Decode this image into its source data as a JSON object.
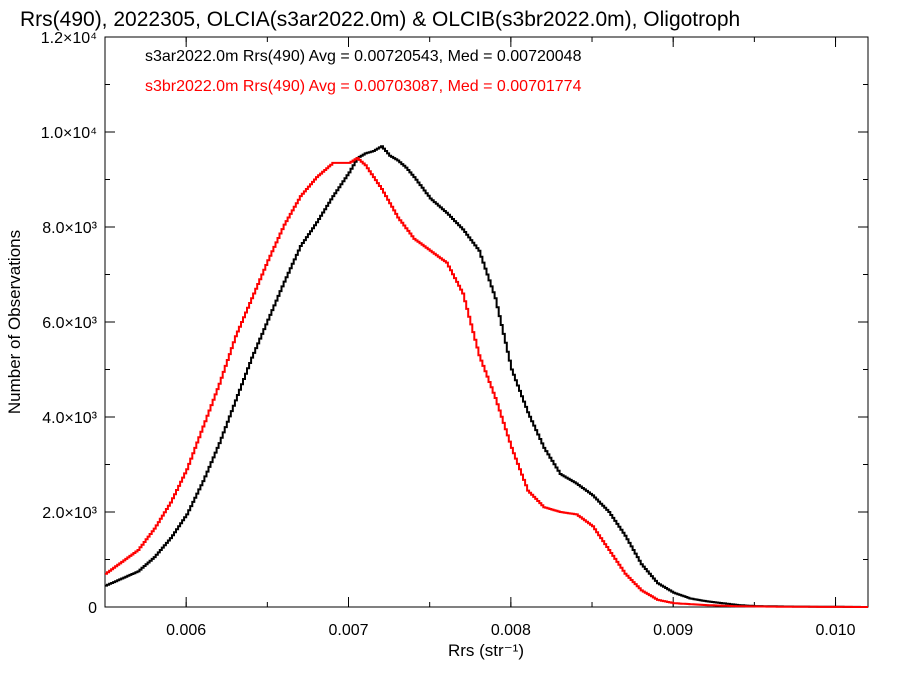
{
  "chart_data": {
    "type": "line",
    "title": "Rrs(490), 2022305, OLCIA(s3ar2022.0m) & OLCIB(s3br2022.0m), Oligotroph",
    "xlabel": "Rrs (str⁻¹)",
    "ylabel": "Number of Observations",
    "xlim": [
      0.0055,
      0.0102
    ],
    "ylim": [
      0,
      12000
    ],
    "xticks": [
      0.006,
      0.007,
      0.008,
      0.009,
      0.01
    ],
    "xtick_labels": [
      "0.006",
      "0.007",
      "0.008",
      "0.009",
      "0.010"
    ],
    "yticks": [
      {
        "value": 0,
        "label": "0"
      },
      {
        "value": 2000,
        "label": "2.0×10³"
      },
      {
        "value": 4000,
        "label": "4.0×10³"
      },
      {
        "value": 6000,
        "label": "6.0×10³"
      },
      {
        "value": 8000,
        "label": "8.0×10³"
      },
      {
        "value": 10000,
        "label": "1.0×10⁴"
      },
      {
        "value": 12000,
        "label": "1.2×10⁴"
      }
    ],
    "grid": false,
    "legend_position": "top-left",
    "series": [
      {
        "name": "s3ar2022.0m Rrs(490) Avg = 0.00720543, Med = 0.00720048",
        "color": "#000000",
        "x": [
          0.0055,
          0.0057,
          0.0058,
          0.0059,
          0.006,
          0.0061,
          0.0062,
          0.0063,
          0.0064,
          0.0065,
          0.0066,
          0.0067,
          0.0068,
          0.0069,
          0.007,
          0.00705,
          0.0071,
          0.00715,
          0.0072,
          0.00725,
          0.0073,
          0.00735,
          0.0074,
          0.0075,
          0.0076,
          0.0077,
          0.0078,
          0.0079,
          0.008,
          0.0081,
          0.0082,
          0.0083,
          0.0084,
          0.0085,
          0.0086,
          0.0087,
          0.0088,
          0.0089,
          0.009,
          0.0091,
          0.0092,
          0.0093,
          0.0094,
          0.0095,
          0.0097,
          0.0102
        ],
        "y": [
          450,
          750,
          1050,
          1450,
          1950,
          2650,
          3450,
          4350,
          5250,
          6050,
          6850,
          7600,
          8100,
          8650,
          9150,
          9450,
          9550,
          9600,
          9700,
          9500,
          9400,
          9250,
          9050,
          8600,
          8300,
          7950,
          7500,
          6500,
          5000,
          4100,
          3350,
          2800,
          2600,
          2350,
          2000,
          1500,
          900,
          500,
          300,
          180,
          120,
          80,
          40,
          20,
          10,
          0
        ]
      },
      {
        "name": "s3br2022.0m Rrs(490) Avg = 0.00703087, Med = 0.00701774",
        "color": "#ff0000",
        "x": [
          0.0055,
          0.0057,
          0.0058,
          0.0059,
          0.006,
          0.0061,
          0.0062,
          0.0063,
          0.0064,
          0.0065,
          0.0066,
          0.0067,
          0.0068,
          0.0069,
          0.007,
          0.00705,
          0.0071,
          0.0072,
          0.0073,
          0.0074,
          0.0075,
          0.0076,
          0.0077,
          0.0078,
          0.0079,
          0.008,
          0.0081,
          0.0082,
          0.0083,
          0.0084,
          0.0085,
          0.0086,
          0.0087,
          0.0088,
          0.0089,
          0.009,
          0.0092,
          0.0094,
          0.0097,
          0.0102
        ],
        "y": [
          700,
          1200,
          1650,
          2200,
          2900,
          3800,
          4700,
          5700,
          6500,
          7300,
          8050,
          8650,
          9050,
          9350,
          9350,
          9450,
          9300,
          8800,
          8200,
          7750,
          7500,
          7250,
          6600,
          5300,
          4400,
          3350,
          2450,
          2100,
          2000,
          1950,
          1700,
          1200,
          700,
          350,
          150,
          80,
          40,
          15,
          5,
          0
        ]
      }
    ]
  }
}
